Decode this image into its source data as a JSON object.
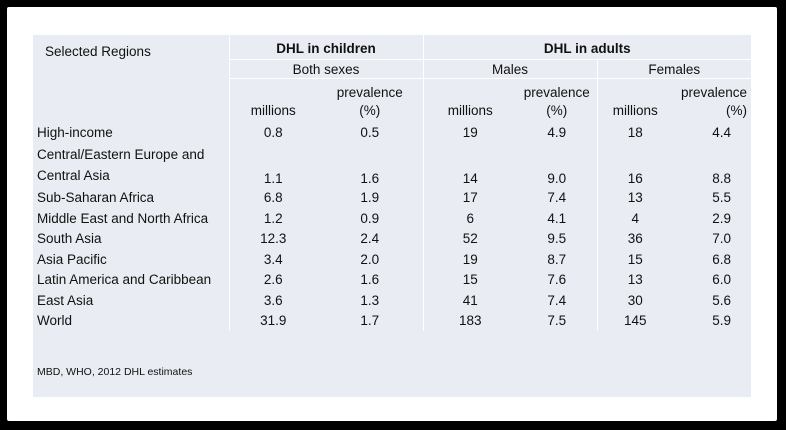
{
  "table": {
    "region_header": "Selected Regions",
    "children_header": "DHL in children",
    "adults_header": "DHL in adults",
    "both_sexes": "Both sexes",
    "males": "Males",
    "females": "Females",
    "unit_millions": "millions",
    "unit_prevalence_line1": "prevalence",
    "unit_prevalence_line2": "(%)",
    "rows": [
      {
        "region": "High-income",
        "c_mil": "0.8",
        "c_prev": "0.5",
        "m_mil": "19",
        "m_prev": "4.9",
        "f_mil": "18",
        "f_prev": "4.4"
      },
      {
        "region": "Central/Eastern Europe and Central Asia",
        "c_mil": "1.1",
        "c_prev": "1.6",
        "m_mil": "14",
        "m_prev": "9.0",
        "f_mil": "16",
        "f_prev": "8.8"
      },
      {
        "region": "Sub-Saharan Africa",
        "c_mil": "6.8",
        "c_prev": "1.9",
        "m_mil": "17",
        "m_prev": "7.4",
        "f_mil": "13",
        "f_prev": "5.5"
      },
      {
        "region": "Middle East and North Africa",
        "c_mil": "1.2",
        "c_prev": "0.9",
        "m_mil": "6",
        "m_prev": "4.1",
        "f_mil": "4",
        "f_prev": "2.9"
      },
      {
        "region": "South Asia",
        "c_mil": "12.3",
        "c_prev": "2.4",
        "m_mil": "52",
        "m_prev": "9.5",
        "f_mil": "36",
        "f_prev": "7.0"
      },
      {
        "region": "Asia Pacific",
        "c_mil": "3.4",
        "c_prev": "2.0",
        "m_mil": "19",
        "m_prev": "8.7",
        "f_mil": "15",
        "f_prev": "6.8"
      },
      {
        "region": "Latin America and Caribbean",
        "c_mil": "2.6",
        "c_prev": "1.6",
        "m_mil": "15",
        "m_prev": "7.6",
        "f_mil": "13",
        "f_prev": "6.0"
      },
      {
        "region": "East Asia",
        "c_mil": "3.6",
        "c_prev": "1.3",
        "m_mil": "41",
        "m_prev": "7.4",
        "f_mil": "30",
        "f_prev": "5.6"
      },
      {
        "region": "World",
        "c_mil": "31.9",
        "c_prev": "1.7",
        "m_mil": "183",
        "m_prev": "7.5",
        "f_mil": "145",
        "f_prev": "5.9"
      }
    ]
  },
  "source": "MBD, WHO, 2012  DHL estimates"
}
